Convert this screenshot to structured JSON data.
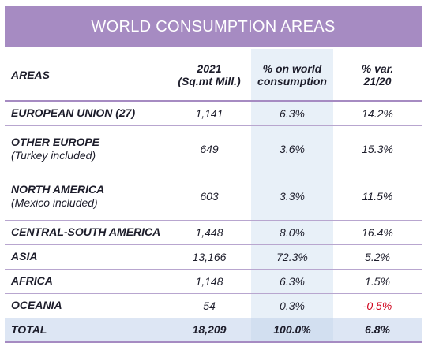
{
  "title": "WORLD CONSUMPTION AREAS",
  "columns": {
    "areas": "AREAS",
    "y2021_line1": "2021",
    "y2021_line2": "(Sq.mt Mill.)",
    "share_line1": "% on world",
    "share_line2": "consumption",
    "var_line1": "% var.",
    "var_line2": "21/20"
  },
  "rows": [
    {
      "area": "EUROPEAN UNION (27)",
      "sub": "",
      "value": "1,141",
      "share": "6.3%",
      "var": "14.2%"
    },
    {
      "area": "OTHER EUROPE",
      "sub": "(Turkey included)",
      "value": "649",
      "share": "3.6%",
      "var": "15.3%"
    },
    {
      "area": "NORTH AMERICA",
      "sub": "(Mexico included)",
      "value": "603",
      "share": "3.3%",
      "var": "11.5%"
    },
    {
      "area": "CENTRAL-SOUTH AMERICA",
      "sub": "",
      "value": "1,448",
      "share": "8.0%",
      "var": "16.4%"
    },
    {
      "area": "ASIA",
      "sub": "",
      "value": "13,166",
      "share": "72.3%",
      "var": "5.2%"
    },
    {
      "area": "AFRICA",
      "sub": "",
      "value": "1,148",
      "share": "6.3%",
      "var": "1.5%"
    },
    {
      "area": "OCEANIA",
      "sub": "",
      "value": "54",
      "share": "0.3%",
      "var": "-0.5%"
    }
  ],
  "total": {
    "area": "TOTAL",
    "value": "18,209",
    "share": "100.0%",
    "var": "6.8%"
  },
  "colors": {
    "banner": "#a68bc2",
    "highlight_column": "#e8f0f8",
    "negative": "#d0021b"
  }
}
